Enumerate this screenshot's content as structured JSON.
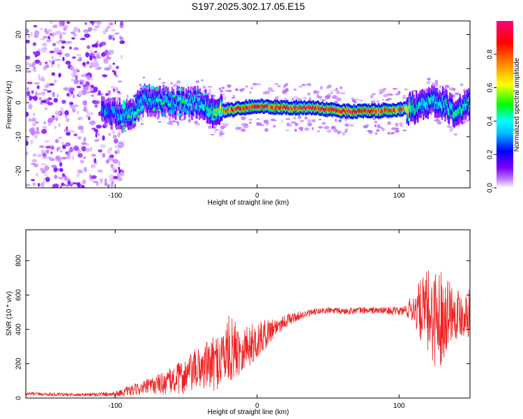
{
  "title": "S197.2025.302.17.05.E15",
  "chart_data": [
    {
      "type": "heatmap",
      "name": "spectrogram",
      "xlabel": "Height of straight line (km)",
      "ylabel": "Frequency (Hz)",
      "xlim": [
        -163,
        150
      ],
      "ylim": [
        -25,
        24
      ],
      "xticks": [
        -100,
        0,
        100
      ],
      "xtick_labels": [
        "-100",
        "0",
        "100"
      ],
      "yticks": [
        -20,
        -10,
        0,
        10,
        20
      ],
      "ytick_labels": [
        "-20",
        "-10",
        "0",
        "10",
        "20"
      ],
      "grid": false,
      "colorbar": {
        "label": "Normalized spectral amplitude",
        "range": [
          0,
          1
        ],
        "ticks": [
          0.0,
          0.2,
          0.4,
          0.6,
          0.8
        ],
        "tick_labels": [
          "0.0",
          "0.2",
          "0.4",
          "0.6",
          "0.8"
        ],
        "colors": [
          "#ffffff",
          "#8000ff",
          "#0000ff",
          "#00ffff",
          "#00ff00",
          "#ffff00",
          "#ff8000",
          "#ff0000",
          "#ff0080"
        ]
      },
      "noise_region_km": [
        -163,
        -95
      ],
      "ridge": {
        "x_km": [
          -163,
          -105,
          -90,
          -80,
          -60,
          -40,
          -30,
          -20,
          0,
          20,
          40,
          60,
          80,
          100,
          110,
          120,
          130,
          140,
          150
        ],
        "freq_hz": [
          0,
          -3,
          -4,
          1,
          0,
          0,
          -3,
          -2,
          -1,
          -1.5,
          -1.5,
          -2.5,
          -2.5,
          -2,
          -1.5,
          0,
          0,
          -3,
          0
        ],
        "amplitude": [
          0.15,
          0.3,
          0.4,
          0.35,
          0.35,
          0.4,
          0.5,
          0.85,
          0.9,
          0.9,
          0.9,
          0.95,
          0.9,
          0.85,
          0.45,
          0.4,
          0.4,
          0.45,
          0.4
        ]
      }
    },
    {
      "type": "line",
      "name": "snr",
      "xlabel": "Height of straight line (km)",
      "ylabel": "SNR (10 * v/v)",
      "xlim": [
        -163,
        150
      ],
      "ylim": [
        0,
        980
      ],
      "xticks": [
        -100,
        0,
        100
      ],
      "xtick_labels": [
        "-100",
        "0",
        "100"
      ],
      "yticks": [
        0,
        200,
        400,
        600,
        800
      ],
      "ytick_labels": [
        "0",
        "200",
        "400",
        "600",
        "800"
      ],
      "grid": false,
      "series": [
        {
          "name": "SNR",
          "color": "#ee2222",
          "x": [
            -163,
            -140,
            -120,
            -100,
            -90,
            -80,
            -70,
            -60,
            -50,
            -40,
            -30,
            -20,
            -10,
            0,
            10,
            20,
            30,
            40,
            50,
            60,
            70,
            80,
            90,
            100,
            105,
            110,
            115,
            120,
            125,
            130,
            135,
            140,
            145,
            150
          ],
          "y": [
            25,
            20,
            20,
            25,
            40,
            60,
            80,
            100,
            130,
            180,
            200,
            280,
            290,
            330,
            400,
            450,
            480,
            500,
            510,
            505,
            510,
            510,
            510,
            505,
            510,
            525,
            510,
            500,
            480,
            470,
            520,
            500,
            490,
            500
          ],
          "spread": [
            10,
            10,
            10,
            15,
            30,
            40,
            60,
            80,
            110,
            130,
            160,
            200,
            140,
            110,
            70,
            40,
            25,
            20,
            20,
            20,
            20,
            20,
            20,
            25,
            40,
            90,
            180,
            250,
            300,
            280,
            200,
            160,
            140,
            140
          ]
        }
      ]
    }
  ]
}
